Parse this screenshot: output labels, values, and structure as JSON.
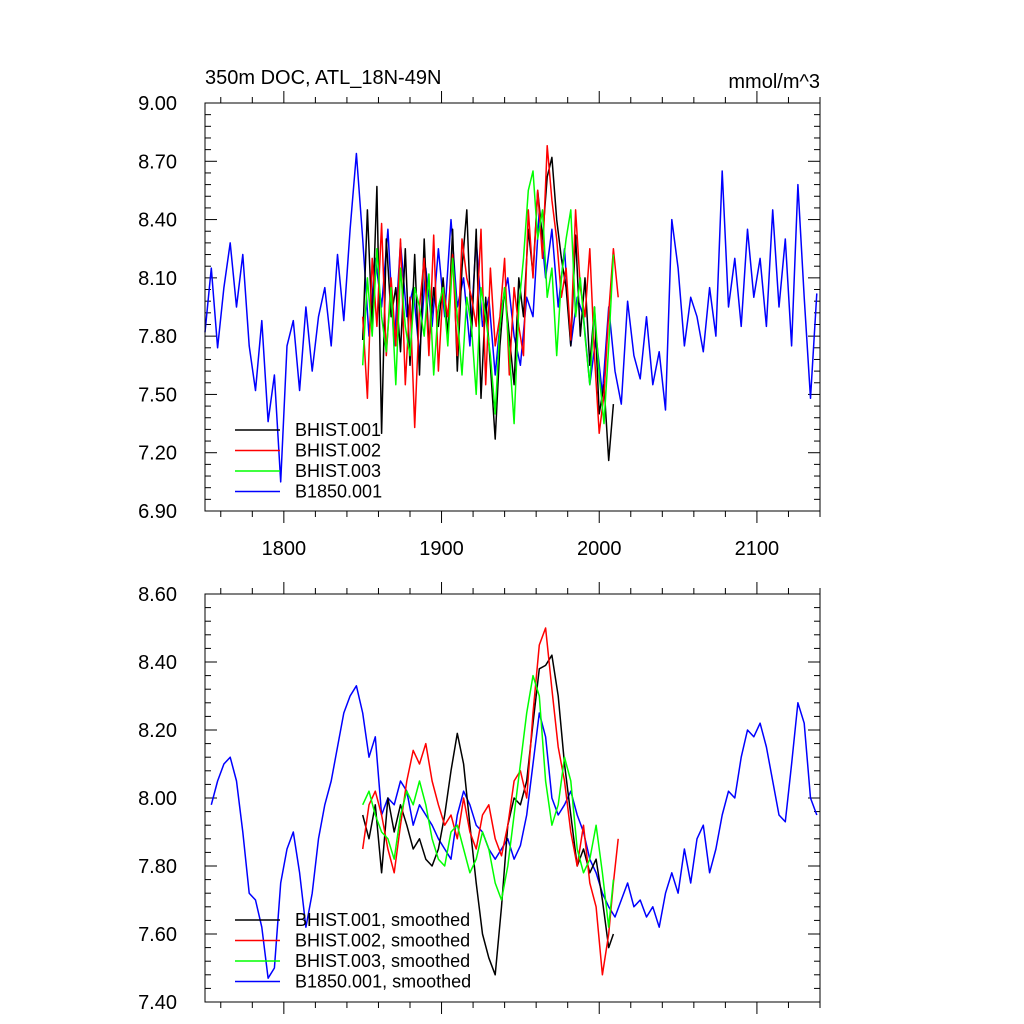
{
  "chart_data": [
    {
      "type": "line",
      "title": "350m DOC, ATL_18N-49N",
      "unit_label": "mmol/m^3",
      "xlim": [
        1750,
        2140
      ],
      "ylim": [
        6.9,
        9.0
      ],
      "xticks": [
        1800,
        1900,
        2000,
        2100
      ],
      "yticks": [
        6.9,
        7.2,
        7.5,
        7.8,
        8.1,
        8.4,
        8.7,
        9.0
      ],
      "ytick_labels": [
        "6.90",
        "7.20",
        "7.50",
        "7.80",
        "8.10",
        "8.40",
        "8.70",
        "9.00"
      ],
      "grid": false,
      "legend_position": "bottom-left",
      "series": [
        {
          "name": "BHIST.001",
          "color": "#000000",
          "x": [
            1850,
            1853,
            1856,
            1859,
            1862,
            1865,
            1868,
            1871,
            1874,
            1877,
            1880,
            1883,
            1886,
            1889,
            1892,
            1895,
            1898,
            1901,
            1904,
            1907,
            1910,
            1913,
            1916,
            1919,
            1922,
            1925,
            1928,
            1931,
            1934,
            1937,
            1940,
            1943,
            1946,
            1949,
            1952,
            1955,
            1958,
            1961,
            1964,
            1967,
            1970,
            1973,
            1976,
            1979,
            1982,
            1985,
            1988,
            1991,
            1994,
            1997,
            2000,
            2003,
            2006,
            2009
          ],
          "y": [
            7.78,
            8.45,
            7.85,
            8.57,
            7.3,
            8.3,
            7.9,
            8.05,
            7.72,
            8.25,
            7.65,
            8.22,
            7.6,
            8.3,
            7.75,
            8.05,
            7.85,
            8.1,
            7.8,
            8.35,
            7.62,
            8.15,
            8.45,
            7.8,
            8.35,
            7.48,
            8.0,
            7.65,
            7.27,
            7.75,
            8.05,
            7.8,
            7.55,
            8.1,
            7.9,
            8.35,
            8.12,
            8.55,
            8.3,
            8.62,
            8.72,
            8.4,
            8.2,
            8.05,
            7.75,
            8.32,
            7.8,
            8.1,
            7.65,
            7.95,
            7.4,
            7.55,
            7.16,
            7.45
          ]
        },
        {
          "name": "BHIST.002",
          "color": "#ff0000",
          "x": [
            1850,
            1853,
            1856,
            1859,
            1862,
            1865,
            1868,
            1871,
            1874,
            1877,
            1880,
            1883,
            1886,
            1889,
            1892,
            1895,
            1898,
            1901,
            1904,
            1907,
            1910,
            1913,
            1916,
            1919,
            1922,
            1925,
            1928,
            1931,
            1934,
            1937,
            1940,
            1943,
            1946,
            1949,
            1952,
            1955,
            1958,
            1961,
            1964,
            1967,
            1970,
            1973,
            1976,
            1979,
            1982,
            1985,
            1988,
            1991,
            1994,
            1997,
            2000,
            2003,
            2006,
            2009,
            2012
          ],
          "y": [
            7.9,
            7.48,
            8.2,
            7.85,
            8.38,
            7.7,
            8.1,
            7.75,
            8.3,
            7.55,
            8.0,
            7.33,
            7.95,
            8.2,
            7.7,
            8.32,
            7.62,
            8.05,
            7.9,
            8.22,
            7.7,
            8.3,
            8.1,
            8.0,
            7.85,
            8.35,
            7.55,
            8.15,
            7.75,
            7.9,
            8.2,
            7.6,
            8.05,
            7.85,
            7.7,
            8.45,
            8.1,
            8.55,
            8.2,
            8.78,
            8.5,
            8.3,
            8.0,
            8.15,
            7.78,
            8.45,
            8.05,
            7.9,
            8.25,
            7.7,
            7.3,
            7.5,
            7.92,
            8.25,
            8.0
          ]
        },
        {
          "name": "BHIST.003",
          "color": "#00ff00",
          "x": [
            1850,
            1853,
            1856,
            1859,
            1862,
            1865,
            1868,
            1871,
            1874,
            1877,
            1880,
            1883,
            1886,
            1889,
            1892,
            1895,
            1898,
            1901,
            1904,
            1907,
            1910,
            1913,
            1916,
            1919,
            1922,
            1925,
            1928,
            1931,
            1934,
            1937,
            1940,
            1943,
            1946,
            1949,
            1952,
            1955,
            1958,
            1961,
            1964,
            1967,
            1970,
            1973,
            1976,
            1979,
            1982,
            1985,
            1988,
            1991,
            1994,
            1997,
            2000,
            2003,
            2006,
            2009
          ],
          "y": [
            7.65,
            8.1,
            7.8,
            8.25,
            7.9,
            7.72,
            8.05,
            7.55,
            8.15,
            7.85,
            7.7,
            8.05,
            7.95,
            7.8,
            8.12,
            7.6,
            7.95,
            8.05,
            7.75,
            8.2,
            7.9,
            7.6,
            8.0,
            7.85,
            7.5,
            8.05,
            7.9,
            7.7,
            7.4,
            7.85,
            8.05,
            7.72,
            7.35,
            7.95,
            8.2,
            8.55,
            8.65,
            8.3,
            8.45,
            8.0,
            8.15,
            7.7,
            8.1,
            8.3,
            8.45,
            7.9,
            8.1,
            7.8,
            7.55,
            7.95,
            7.6,
            7.35,
            7.75,
            8.22
          ]
        },
        {
          "name": "B1850.001",
          "color": "#0000ff",
          "x": [
            1750,
            1754,
            1758,
            1762,
            1766,
            1770,
            1774,
            1778,
            1782,
            1786,
            1790,
            1794,
            1798,
            1802,
            1806,
            1810,
            1814,
            1818,
            1822,
            1826,
            1830,
            1834,
            1838,
            1842,
            1846,
            1850,
            1854,
            1858,
            1862,
            1866,
            1870,
            1874,
            1878,
            1882,
            1886,
            1890,
            1894,
            1898,
            1902,
            1906,
            1910,
            1914,
            1918,
            1922,
            1926,
            1930,
            1934,
            1938,
            1942,
            1946,
            1950,
            1954,
            1958,
            1962,
            1966,
            1970,
            1974,
            1978,
            1982,
            1986,
            1990,
            1994,
            1998,
            2002,
            2006,
            2010,
            2014,
            2018,
            2022,
            2026,
            2030,
            2034,
            2038,
            2042,
            2046,
            2050,
            2054,
            2058,
            2062,
            2066,
            2070,
            2074,
            2078,
            2082,
            2086,
            2090,
            2094,
            2098,
            2102,
            2106,
            2110,
            2114,
            2118,
            2122,
            2126,
            2130,
            2134,
            2138
          ],
          "y": [
            7.82,
            8.15,
            7.74,
            8.05,
            8.28,
            7.95,
            8.22,
            7.75,
            7.52,
            7.88,
            7.36,
            7.6,
            7.05,
            7.75,
            7.88,
            7.52,
            7.95,
            7.62,
            7.9,
            8.05,
            7.75,
            8.22,
            7.88,
            8.35,
            8.74,
            8.3,
            7.8,
            8.2,
            7.95,
            8.35,
            7.75,
            8.28,
            7.9,
            8.05,
            7.7,
            8.15,
            7.85,
            8.25,
            7.9,
            8.4,
            7.95,
            8.1,
            7.75,
            8.3,
            7.85,
            8.0,
            7.6,
            7.95,
            8.1,
            7.8,
            7.65,
            8.0,
            7.9,
            8.45,
            8.1,
            8.35,
            7.95,
            8.25,
            7.75,
            8.0,
            7.9,
            7.55,
            7.8,
            7.5,
            7.95,
            7.62,
            7.45,
            7.98,
            7.7,
            7.58,
            7.9,
            7.55,
            7.72,
            7.42,
            8.4,
            8.15,
            7.75,
            8.0,
            7.9,
            7.72,
            8.05,
            7.8,
            8.65,
            7.95,
            8.2,
            7.85,
            8.35,
            8.0,
            8.2,
            7.85,
            8.45,
            7.95,
            8.3,
            7.75,
            8.58,
            8.0,
            7.48,
            8.02
          ]
        }
      ]
    },
    {
      "type": "line",
      "xlim": [
        1750,
        2140
      ],
      "ylim": [
        7.4,
        8.6
      ],
      "xticks": [
        1800,
        1900,
        2000,
        2100
      ],
      "yticks": [
        7.4,
        7.6,
        7.8,
        8.0,
        8.2,
        8.4,
        8.6
      ],
      "ytick_labels": [
        "7.40",
        "7.60",
        "7.80",
        "8.00",
        "8.20",
        "8.40",
        "8.60"
      ],
      "grid": false,
      "legend_position": "bottom-left",
      "series": [
        {
          "name": "BHIST.001, smoothed",
          "color": "#000000",
          "x": [
            1850,
            1854,
            1858,
            1862,
            1866,
            1870,
            1874,
            1878,
            1882,
            1886,
            1890,
            1894,
            1898,
            1902,
            1906,
            1910,
            1914,
            1918,
            1922,
            1926,
            1930,
            1934,
            1938,
            1942,
            1946,
            1950,
            1954,
            1958,
            1962,
            1966,
            1970,
            1974,
            1978,
            1982,
            1986,
            1990,
            1994,
            1998,
            2002,
            2006,
            2009
          ],
          "y": [
            7.95,
            7.88,
            7.98,
            7.78,
            8.0,
            7.9,
            7.98,
            7.92,
            7.85,
            7.88,
            7.82,
            7.8,
            7.85,
            7.95,
            8.08,
            8.19,
            8.1,
            7.92,
            7.75,
            7.6,
            7.53,
            7.48,
            7.68,
            7.92,
            8.0,
            7.98,
            8.05,
            8.22,
            8.38,
            8.39,
            8.42,
            8.3,
            8.1,
            7.95,
            7.8,
            7.85,
            7.78,
            7.82,
            7.7,
            7.56,
            7.6
          ]
        },
        {
          "name": "BHIST.002, smoothed",
          "color": "#ff0000",
          "x": [
            1850,
            1854,
            1858,
            1862,
            1866,
            1870,
            1874,
            1878,
            1882,
            1886,
            1890,
            1894,
            1898,
            1902,
            1906,
            1910,
            1914,
            1918,
            1922,
            1926,
            1930,
            1934,
            1938,
            1942,
            1946,
            1950,
            1954,
            1958,
            1962,
            1966,
            1970,
            1974,
            1978,
            1982,
            1986,
            1990,
            1994,
            1998,
            2002,
            2006,
            2009,
            2012
          ],
          "y": [
            7.85,
            7.98,
            8.02,
            7.95,
            7.85,
            7.78,
            7.92,
            8.05,
            8.14,
            8.1,
            8.16,
            8.05,
            7.98,
            7.92,
            7.95,
            7.88,
            8.0,
            7.9,
            7.85,
            7.95,
            7.98,
            7.88,
            7.83,
            7.92,
            8.05,
            8.08,
            8.0,
            8.25,
            8.45,
            8.5,
            8.32,
            8.15,
            8.05,
            7.9,
            7.8,
            7.92,
            7.75,
            7.68,
            7.48,
            7.6,
            7.75,
            7.88
          ]
        },
        {
          "name": "BHIST.003, smoothed",
          "color": "#00ff00",
          "x": [
            1850,
            1854,
            1858,
            1862,
            1866,
            1870,
            1874,
            1878,
            1882,
            1886,
            1890,
            1894,
            1898,
            1902,
            1906,
            1910,
            1914,
            1918,
            1922,
            1926,
            1930,
            1934,
            1938,
            1942,
            1946,
            1950,
            1954,
            1958,
            1962,
            1966,
            1970,
            1974,
            1978,
            1982,
            1986,
            1990,
            1994,
            1998,
            2002,
            2006,
            2009
          ],
          "y": [
            7.98,
            8.02,
            7.95,
            7.9,
            7.88,
            7.82,
            7.95,
            8.02,
            7.98,
            8.05,
            7.98,
            7.88,
            7.82,
            7.8,
            7.9,
            7.92,
            7.85,
            7.78,
            7.82,
            7.9,
            7.85,
            7.75,
            7.7,
            7.8,
            7.95,
            8.1,
            8.25,
            8.36,
            8.3,
            8.05,
            7.92,
            7.98,
            8.12,
            8.05,
            7.85,
            7.78,
            7.82,
            7.92,
            7.78,
            7.62,
            7.76
          ]
        },
        {
          "name": "B1850.001, smoothed",
          "color": "#0000ff",
          "x": [
            1754,
            1758,
            1762,
            1766,
            1770,
            1774,
            1778,
            1782,
            1786,
            1790,
            1794,
            1798,
            1802,
            1806,
            1810,
            1814,
            1818,
            1822,
            1826,
            1830,
            1834,
            1838,
            1842,
            1846,
            1850,
            1854,
            1858,
            1862,
            1866,
            1870,
            1874,
            1878,
            1882,
            1886,
            1890,
            1894,
            1898,
            1902,
            1906,
            1910,
            1914,
            1918,
            1922,
            1926,
            1930,
            1934,
            1938,
            1942,
            1946,
            1950,
            1954,
            1958,
            1962,
            1966,
            1970,
            1974,
            1978,
            1982,
            1986,
            1990,
            1994,
            1998,
            2002,
            2006,
            2010,
            2014,
            2018,
            2022,
            2026,
            2030,
            2034,
            2038,
            2042,
            2046,
            2050,
            2054,
            2058,
            2062,
            2066,
            2070,
            2074,
            2078,
            2082,
            2086,
            2090,
            2094,
            2098,
            2102,
            2106,
            2110,
            2114,
            2118,
            2122,
            2126,
            2130,
            2134,
            2138
          ],
          "y": [
            7.98,
            8.05,
            8.1,
            8.12,
            8.05,
            7.9,
            7.72,
            7.7,
            7.62,
            7.47,
            7.5,
            7.75,
            7.85,
            7.9,
            7.78,
            7.62,
            7.72,
            7.88,
            7.98,
            8.05,
            8.15,
            8.25,
            8.3,
            8.33,
            8.25,
            8.12,
            8.18,
            7.95,
            8.0,
            7.98,
            8.05,
            8.02,
            7.92,
            7.98,
            7.95,
            7.92,
            7.88,
            7.85,
            7.82,
            7.95,
            8.02,
            7.98,
            7.92,
            7.9,
            7.85,
            7.82,
            7.85,
            7.88,
            7.82,
            7.86,
            7.95,
            8.1,
            8.25,
            8.18,
            8.0,
            7.95,
            7.98,
            8.02,
            7.95,
            7.9,
            7.82,
            7.78,
            7.72,
            7.68,
            7.65,
            7.7,
            7.75,
            7.68,
            7.7,
            7.65,
            7.68,
            7.62,
            7.72,
            7.78,
            7.72,
            7.85,
            7.75,
            7.88,
            7.92,
            7.78,
            7.85,
            7.95,
            8.02,
            8.0,
            8.12,
            8.2,
            8.18,
            8.22,
            8.15,
            8.05,
            7.95,
            7.93,
            8.1,
            8.28,
            8.22,
            8.0,
            7.95
          ]
        }
      ]
    }
  ]
}
